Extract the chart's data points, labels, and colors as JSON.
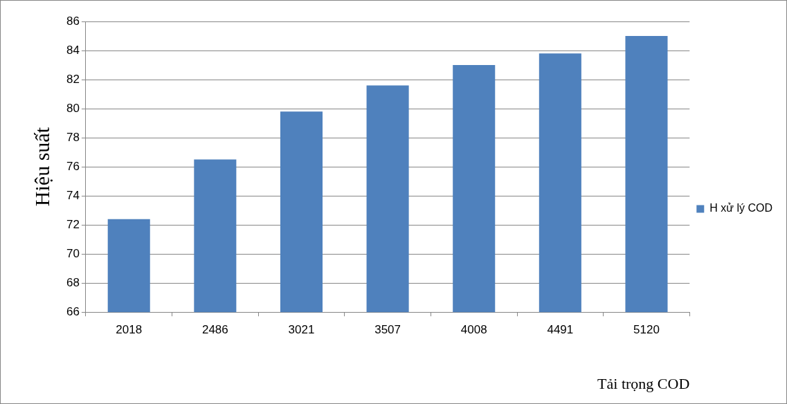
{
  "chart_data": {
    "type": "bar",
    "xlabel": "Tải trọng COD",
    "ylabel": "Hiệu suất",
    "categories": [
      "2018",
      "2486",
      "3021",
      "3507",
      "4008",
      "4491",
      "5120"
    ],
    "series": [
      {
        "name": "H xử lý COD",
        "color": "#4f81bd",
        "values": [
          72.4,
          76.5,
          79.8,
          81.6,
          83.0,
          83.8,
          85.0
        ]
      }
    ],
    "ylim": [
      66,
      86
    ],
    "yticks": [
      66,
      68,
      70,
      72,
      74,
      76,
      78,
      80,
      82,
      84,
      86
    ],
    "grid": "y",
    "legend": "right"
  }
}
